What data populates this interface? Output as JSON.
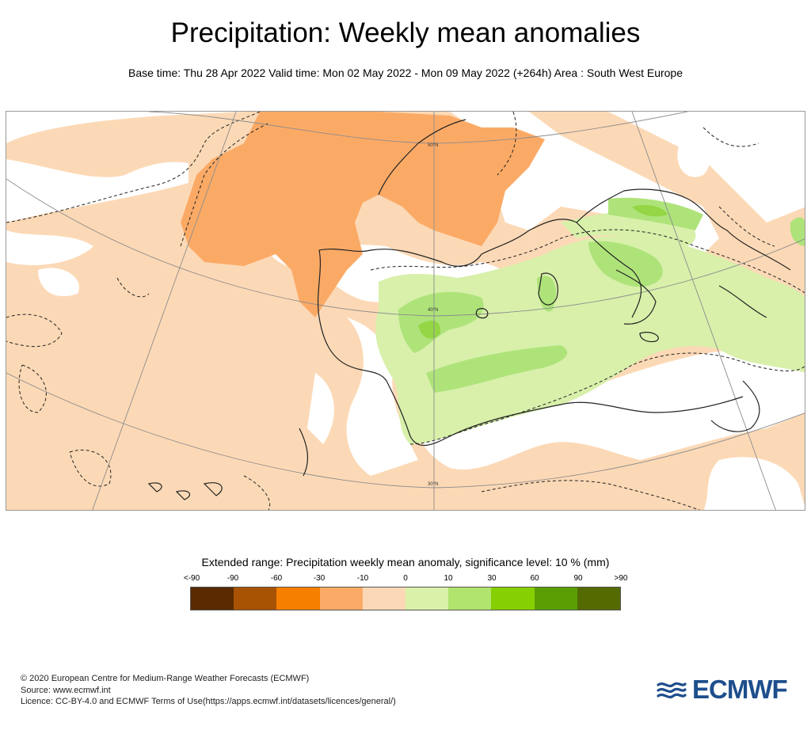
{
  "title": "Precipitation: Weekly mean anomalies",
  "subtitle": "Base time: Thu 28 Apr 2022 Valid time: Mon 02 May 2022 - Mon 09 May 2022 (+264h) Area : South West Europe",
  "map": {
    "lat_labels": [
      "50°N",
      "40°N",
      "30°N"
    ],
    "colors": {
      "background_anomaly": "#fcd9b6",
      "strong_dry": "#fbaa66",
      "neutral": "#ffffff",
      "wet_light": "#d8f0aa",
      "wet_mid": "#aee37a",
      "wet_strong": "#86cf2a",
      "coast": "#222222",
      "graticule": "#8c8c8c"
    }
  },
  "legend": {
    "title": "Extended range: Precipitation weekly mean anomaly, significance level: 10 % (mm)",
    "labels": [
      "<-90",
      "-90",
      "-60",
      "-30",
      "-10",
      "0",
      "10",
      "30",
      "60",
      "90",
      ">90"
    ],
    "colors": [
      "#5a2a00",
      "#a85304",
      "#f77f00",
      "#fbaa66",
      "#fcd9b6",
      "#daf1a9",
      "#b1e36f",
      "#86cf02",
      "#5a9e04",
      "#546b02"
    ]
  },
  "footer": {
    "line1": "© 2020 European Centre for Medium-Range Weather Forecasts (ECMWF)",
    "line2": "Source: www.ecmwf.int",
    "line3": "Licence: CC-BY-4.0 and ECMWF Terms of Use(https://apps.ecmwf.int/datasets/licences/general/)"
  },
  "logo": {
    "text": "ECMWF"
  }
}
